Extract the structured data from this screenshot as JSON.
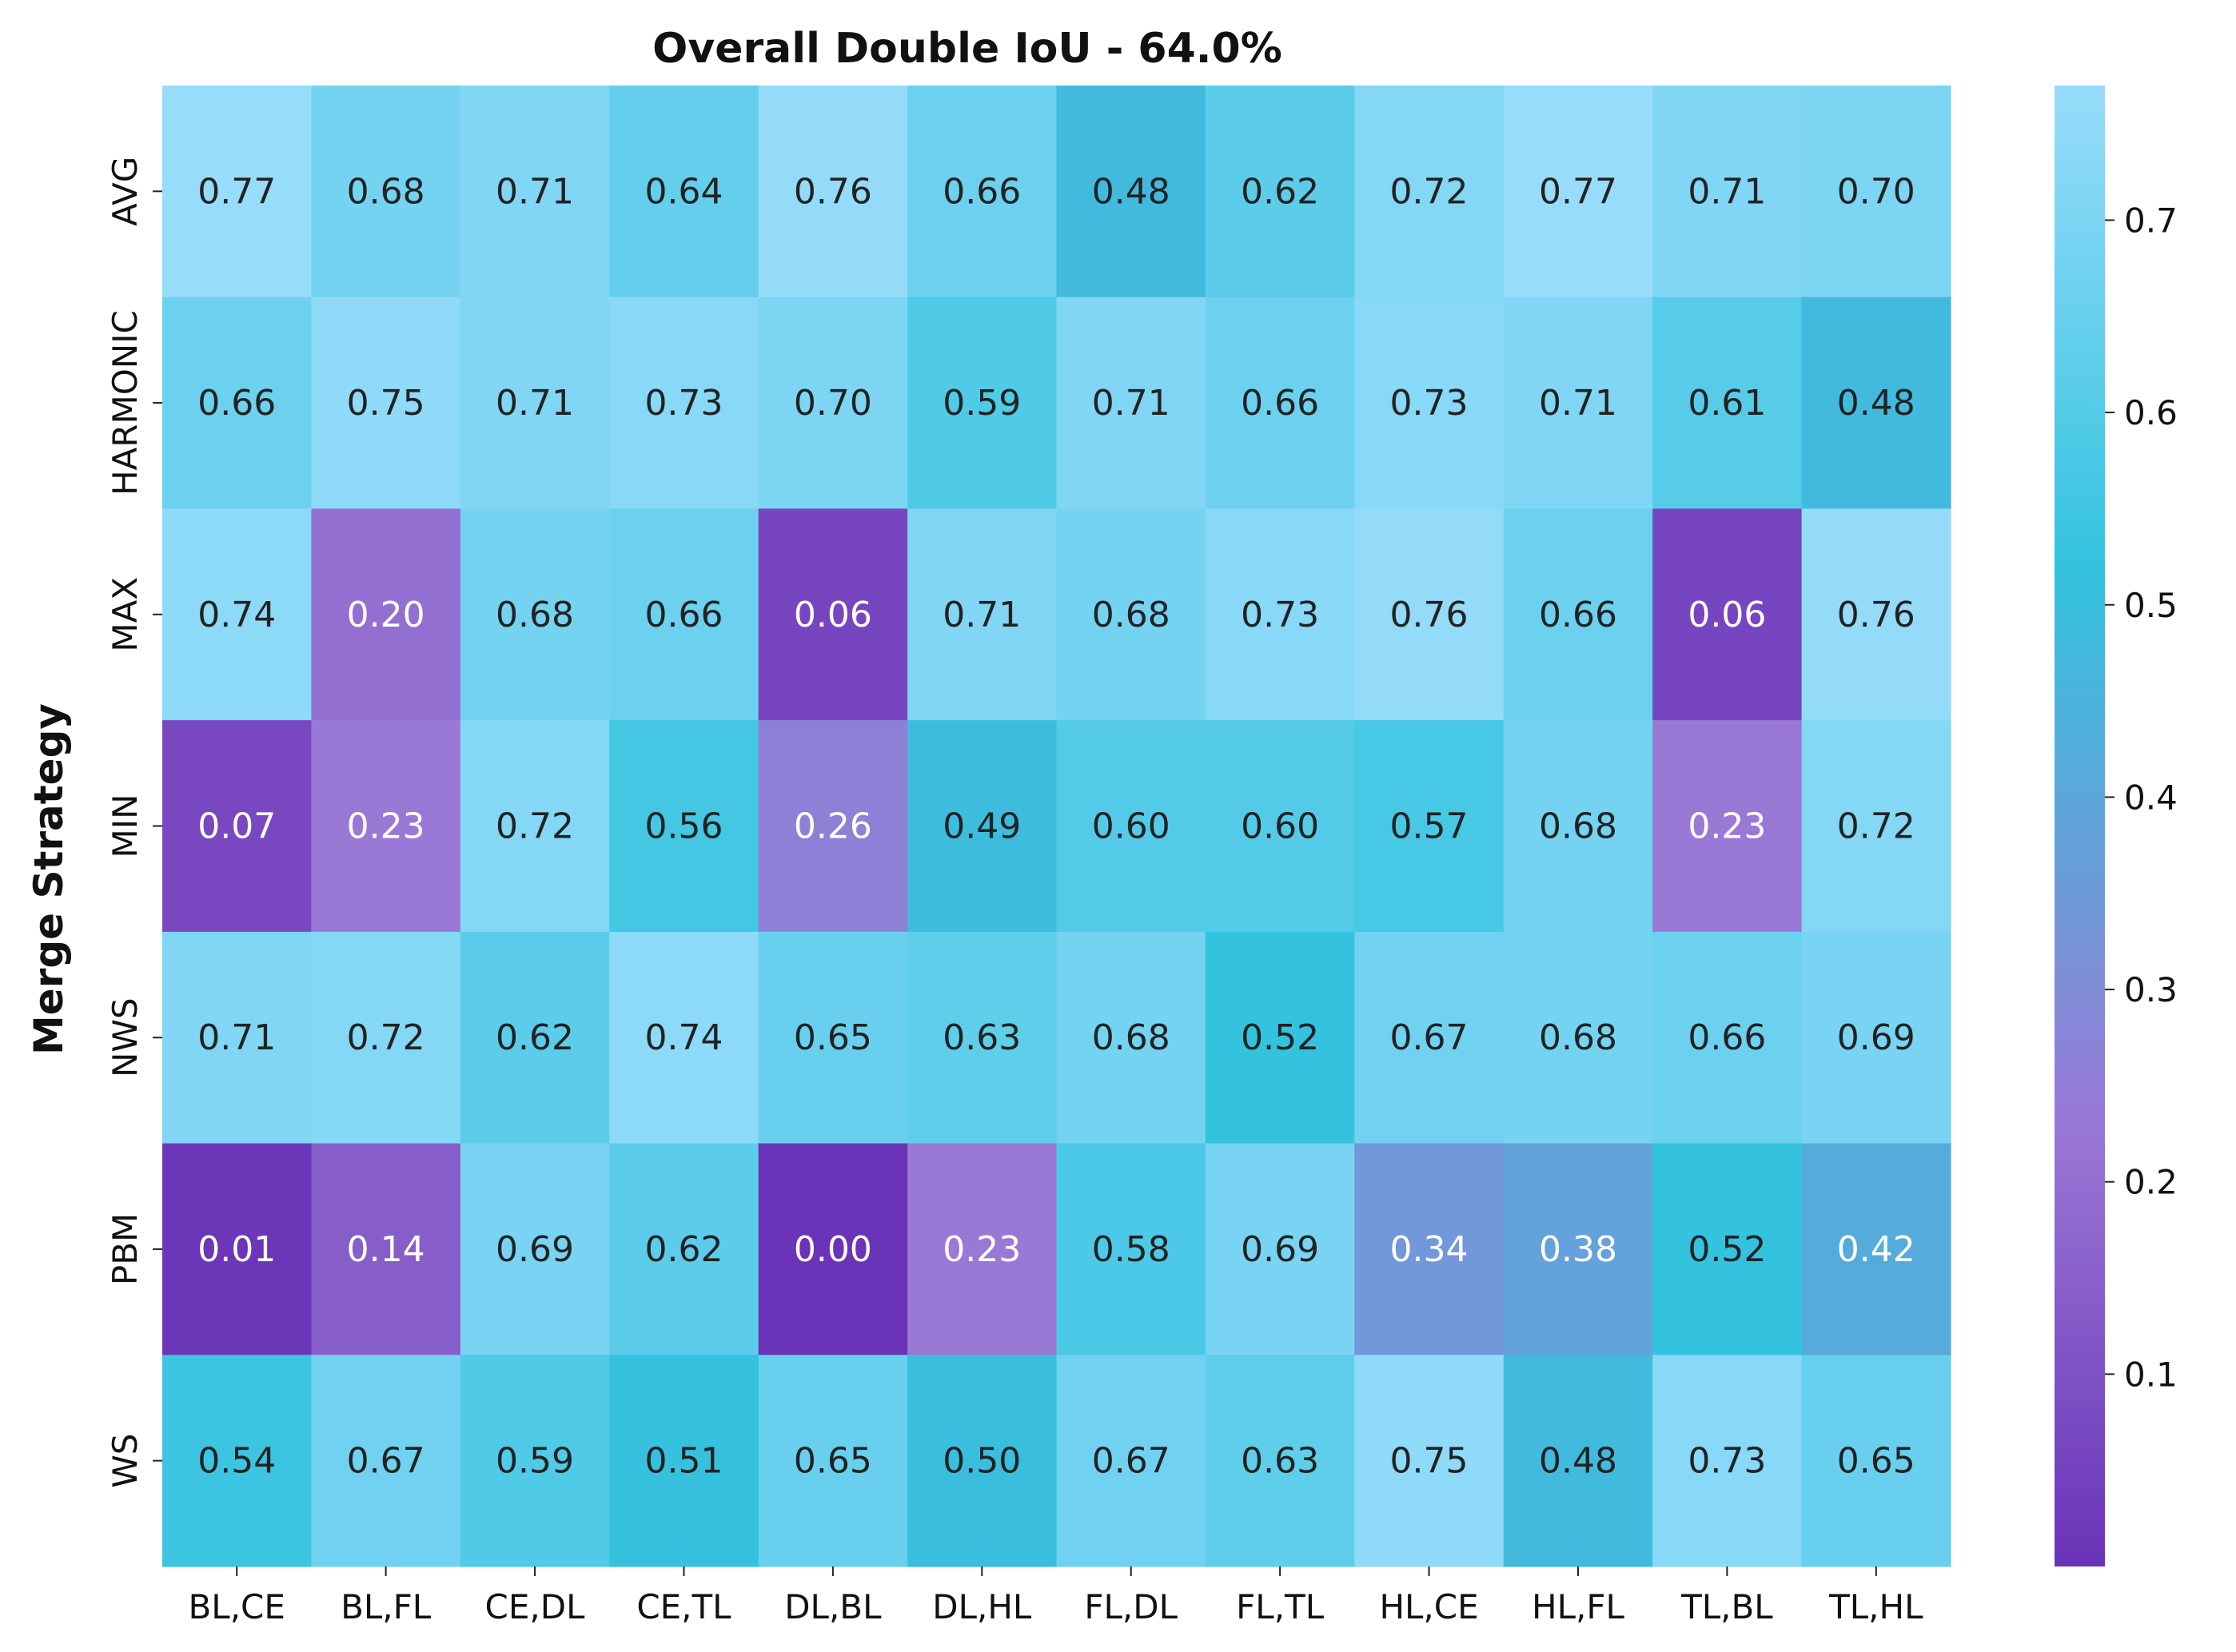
{
  "chart_data": {
    "type": "heatmap",
    "title": "Overall Double IoU - 64.0%",
    "xlabel": "",
    "ylabel": "Merge Strategy",
    "x_categories": [
      "BL,CE",
      "BL,FL",
      "CE,DL",
      "CE,TL",
      "DL,BL",
      "DL,HL",
      "FL,DL",
      "FL,TL",
      "HL,CE",
      "HL,FL",
      "TL,BL",
      "TL,HL"
    ],
    "y_categories": [
      "AVG",
      "HARMONIC",
      "MAX",
      "MIN",
      "NWS",
      "PBM",
      "WS"
    ],
    "values": [
      [
        0.77,
        0.68,
        0.71,
        0.64,
        0.76,
        0.66,
        0.48,
        0.62,
        0.72,
        0.77,
        0.71,
        0.7
      ],
      [
        0.66,
        0.75,
        0.71,
        0.73,
        0.7,
        0.59,
        0.71,
        0.66,
        0.73,
        0.71,
        0.61,
        0.48
      ],
      [
        0.74,
        0.2,
        0.68,
        0.66,
        0.06,
        0.71,
        0.68,
        0.73,
        0.76,
        0.66,
        0.06,
        0.76
      ],
      [
        0.07,
        0.23,
        0.72,
        0.56,
        0.26,
        0.49,
        0.6,
        0.6,
        0.57,
        0.68,
        0.23,
        0.72
      ],
      [
        0.71,
        0.72,
        0.62,
        0.74,
        0.65,
        0.63,
        0.68,
        0.52,
        0.67,
        0.68,
        0.66,
        0.69
      ],
      [
        0.01,
        0.14,
        0.69,
        0.62,
        0.0,
        0.23,
        0.58,
        0.69,
        0.34,
        0.38,
        0.52,
        0.42
      ],
      [
        0.54,
        0.67,
        0.59,
        0.51,
        0.65,
        0.5,
        0.67,
        0.63,
        0.75,
        0.48,
        0.73,
        0.65
      ]
    ],
    "value_labels": [
      [
        "0.77",
        "0.68",
        "0.71",
        "0.64",
        "0.76",
        "0.66",
        "0.48",
        "0.62",
        "0.72",
        "0.77",
        "0.71",
        "0.70"
      ],
      [
        "0.66",
        "0.75",
        "0.71",
        "0.73",
        "0.70",
        "0.59",
        "0.71",
        "0.66",
        "0.73",
        "0.71",
        "0.61",
        "0.48"
      ],
      [
        "0.74",
        "0.20",
        "0.68",
        "0.66",
        "0.06",
        "0.71",
        "0.68",
        "0.73",
        "0.76",
        "0.66",
        "0.06",
        "0.76"
      ],
      [
        "0.07",
        "0.23",
        "0.72",
        "0.56",
        "0.26",
        "0.49",
        "0.60",
        "0.60",
        "0.57",
        "0.68",
        "0.23",
        "0.72"
      ],
      [
        "0.71",
        "0.72",
        "0.62",
        "0.74",
        "0.65",
        "0.63",
        "0.68",
        "0.52",
        "0.67",
        "0.68",
        "0.66",
        "0.69"
      ],
      [
        "0.01",
        "0.14",
        "0.69",
        "0.62",
        "0.00",
        "0.23",
        "0.58",
        "0.69",
        "0.34",
        "0.38",
        "0.52",
        "0.42"
      ],
      [
        "0.54",
        "0.67",
        "0.59",
        "0.51",
        "0.65",
        "0.50",
        "0.67",
        "0.63",
        "0.75",
        "0.48",
        "0.73",
        "0.65"
      ]
    ],
    "colorbar": {
      "range": [
        0.0,
        0.77
      ],
      "ticks": [
        0.1,
        0.2,
        0.3,
        0.4,
        0.5,
        0.6,
        0.7
      ],
      "tick_labels": [
        "0.1",
        "0.2",
        "0.3",
        "0.4",
        "0.5",
        "0.6",
        "0.7"
      ],
      "colormap_stops": [
        {
          "v": 0.0,
          "color": "#6a33b8"
        },
        {
          "v": 0.23,
          "color": "#9a78d6"
        },
        {
          "v": 0.38,
          "color": "#63a2db"
        },
        {
          "v": 0.52,
          "color": "#33c3df"
        },
        {
          "v": 0.77,
          "color": "#98dcfb"
        }
      ],
      "label_color_threshold": 0.45,
      "dark_text_color": "#222222",
      "light_text_color": "#ffffff"
    },
    "grid": false
  }
}
